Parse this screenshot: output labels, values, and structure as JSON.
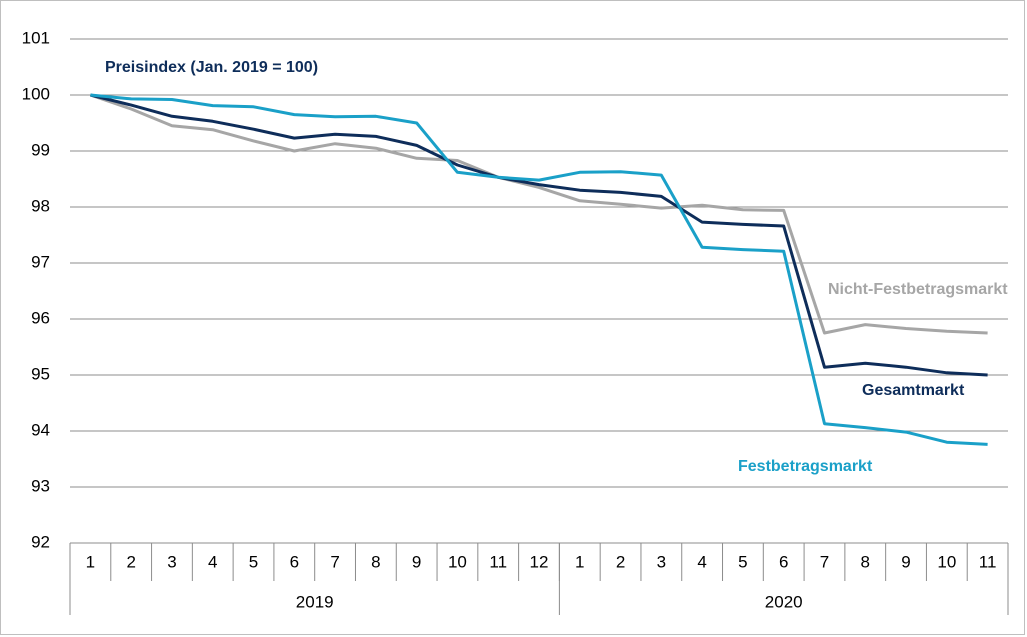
{
  "chart_data": {
    "type": "line",
    "title": "Preisindex (Jan. 2019 = 100)",
    "categories": [
      "1",
      "2",
      "3",
      "4",
      "5",
      "6",
      "7",
      "8",
      "9",
      "10",
      "11",
      "12",
      "1",
      "2",
      "3",
      "4",
      "5",
      "6",
      "7",
      "8",
      "9",
      "10",
      "11"
    ],
    "year_groups": [
      "2019",
      "2020"
    ],
    "ylim": [
      92,
      101
    ],
    "yticks": [
      92,
      93,
      94,
      95,
      96,
      97,
      98,
      99,
      100,
      101
    ],
    "grid": true,
    "series": [
      {
        "name": "Nicht-Festbetragsmarkt",
        "color": "#a6a6a6",
        "values": [
          100,
          99.75,
          99.45,
          99.38,
          99.18,
          99.0,
          99.13,
          99.05,
          98.87,
          98.83,
          98.53,
          98.35,
          98.11,
          98.05,
          97.98,
          98.03,
          97.95,
          97.94,
          95.75,
          95.9,
          95.83,
          95.78,
          95.75
        ]
      },
      {
        "name": "Gesamtmarkt",
        "color": "#0e2d5a",
        "values": [
          100,
          99.82,
          99.62,
          99.53,
          99.39,
          99.23,
          99.3,
          99.26,
          99.1,
          98.75,
          98.53,
          98.4,
          98.3,
          98.26,
          98.19,
          97.73,
          97.69,
          97.66,
          95.14,
          95.21,
          95.14,
          95.04,
          95.0
        ]
      },
      {
        "name": "Festbetragsmarkt",
        "color": "#1aa0c8",
        "values": [
          100,
          99.93,
          99.92,
          99.81,
          99.79,
          99.65,
          99.61,
          99.62,
          99.5,
          98.62,
          98.53,
          98.48,
          98.62,
          98.63,
          98.57,
          97.28,
          97.24,
          97.21,
          94.13,
          94.06,
          93.98,
          93.8,
          93.76
        ]
      }
    ]
  }
}
